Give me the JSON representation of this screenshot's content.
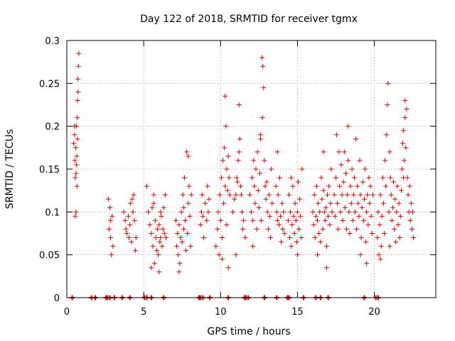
{
  "chart_data": {
    "type": "scatter",
    "title": "Day 122 of 2018, SRMTID for receiver tgmx",
    "xlabel": "GPS time / hours",
    "ylabel": "SRMTID / TECUs",
    "xlim": [
      0,
      24
    ],
    "ylim": [
      0,
      0.3
    ],
    "grid": true,
    "marker": "plus",
    "color": "#dd0000",
    "xticks": [
      {
        "value": 0,
        "label": "0"
      },
      {
        "value": 5,
        "label": "5"
      },
      {
        "value": 10,
        "label": "10"
      },
      {
        "value": 15,
        "label": "15"
      },
      {
        "value": 20,
        "label": "20"
      }
    ],
    "yticks": [
      {
        "value": 0,
        "label": "0"
      },
      {
        "value": 0.05,
        "label": "0.05"
      },
      {
        "value": 0.1,
        "label": "0.1"
      },
      {
        "value": 0.15,
        "label": "0.15"
      },
      {
        "value": 0.2,
        "label": "0.2"
      },
      {
        "value": 0.25,
        "label": "0.25"
      },
      {
        "value": 0.3,
        "label": "0.3"
      }
    ],
    "points": [
      [
        0.45,
        0.18
      ],
      [
        0.5,
        0.19
      ],
      [
        0.52,
        0.16
      ],
      [
        0.55,
        0.14
      ],
      [
        0.58,
        0.175
      ],
      [
        0.6,
        0.145
      ],
      [
        0.62,
        0.2
      ],
      [
        0.65,
        0.165
      ],
      [
        0.68,
        0.21
      ],
      [
        0.7,
        0.23
      ],
      [
        0.72,
        0.255
      ],
      [
        0.75,
        0.27
      ],
      [
        0.78,
        0.285
      ],
      [
        0.55,
        0.095
      ],
      [
        0.6,
        0.1
      ],
      [
        0.66,
        0.13
      ],
      [
        0.7,
        0.185
      ],
      [
        0.73,
        0.24
      ],
      [
        0.5,
        0.2
      ],
      [
        0.63,
        0.155
      ],
      [
        2.7,
        0.115
      ],
      [
        2.75,
        0.08
      ],
      [
        2.8,
        0.105
      ],
      [
        2.85,
        0.07
      ],
      [
        2.9,
        0.05
      ],
      [
        2.95,
        0.095
      ],
      [
        3.0,
        0.06
      ],
      [
        2.85,
        0.09
      ],
      [
        3.7,
        0.1
      ],
      [
        3.8,
        0.09
      ],
      [
        3.85,
        0.08
      ],
      [
        3.9,
        0.075
      ],
      [
        4.0,
        0.095
      ],
      [
        4.1,
        0.085
      ],
      [
        4.15,
        0.11
      ],
      [
        4.2,
        0.065
      ],
      [
        4.3,
        0.1
      ],
      [
        4.35,
        0.12
      ],
      [
        4.4,
        0.09
      ],
      [
        4.45,
        0.055
      ],
      [
        4.5,
        0.07
      ],
      [
        4.25,
        0.115
      ],
      [
        4.05,
        0.07
      ],
      [
        5.2,
        0.13
      ],
      [
        5.3,
        0.1
      ],
      [
        5.4,
        0.085
      ],
      [
        5.5,
        0.075
      ],
      [
        5.55,
        0.105
      ],
      [
        5.6,
        0.06
      ],
      [
        5.65,
        0.11
      ],
      [
        5.7,
        0.04
      ],
      [
        5.75,
        0.09
      ],
      [
        5.8,
        0.07
      ],
      [
        5.85,
        0.055
      ],
      [
        5.9,
        0.08
      ],
      [
        5.95,
        0.05
      ],
      [
        6.0,
        0.085
      ],
      [
        6.05,
        0.065
      ],
      [
        6.1,
        0.07
      ],
      [
        6.15,
        0.095
      ],
      [
        6.2,
        0.06
      ],
      [
        6.25,
        0.08
      ],
      [
        6.3,
        0.105
      ],
      [
        6.35,
        0.075
      ],
      [
        6.4,
        0.12
      ],
      [
        5.5,
        0.035
      ],
      [
        6.0,
        0.03
      ],
      [
        6.45,
        0.07
      ],
      [
        5.65,
        0.12
      ],
      [
        6.1,
        0.1
      ],
      [
        7.1,
        0.09
      ],
      [
        7.15,
        0.06
      ],
      [
        7.2,
        0.075
      ],
      [
        7.25,
        0.05
      ],
      [
        7.3,
        0.085
      ],
      [
        7.35,
        0.04
      ],
      [
        7.4,
        0.07
      ],
      [
        7.45,
        0.1
      ],
      [
        7.5,
        0.065
      ],
      [
        7.55,
        0.12
      ],
      [
        7.6,
        0.08
      ],
      [
        7.65,
        0.14
      ],
      [
        7.7,
        0.09
      ],
      [
        7.75,
        0.055
      ],
      [
        7.8,
        0.17
      ],
      [
        7.85,
        0.075
      ],
      [
        7.9,
        0.11
      ],
      [
        7.95,
        0.13
      ],
      [
        8.0,
        0.095
      ],
      [
        8.05,
        0.06
      ],
      [
        7.6,
        0.105
      ],
      [
        7.3,
        0.03
      ],
      [
        7.9,
        0.165
      ],
      [
        8.1,
        0.12
      ],
      [
        8.7,
        0.085
      ],
      [
        8.75,
        0.1
      ],
      [
        8.8,
        0.12
      ],
      [
        8.85,
        0.095
      ],
      [
        8.9,
        0.07
      ],
      [
        9.0,
        0.11
      ],
      [
        9.1,
        0.09
      ],
      [
        9.15,
        0.13
      ],
      [
        9.2,
        0.1
      ],
      [
        9.25,
        0.115
      ],
      [
        9.7,
        0.06
      ],
      [
        9.8,
        0.08
      ],
      [
        9.85,
        0.1
      ],
      [
        9.9,
        0.05
      ],
      [
        9.95,
        0.12
      ],
      [
        10.0,
        0.09
      ],
      [
        10.05,
        0.14
      ],
      [
        10.1,
        0.07
      ],
      [
        10.15,
        0.16
      ],
      [
        10.2,
        0.11
      ],
      [
        10.25,
        0.175
      ],
      [
        10.3,
        0.13
      ],
      [
        10.35,
        0.2
      ],
      [
        10.4,
        0.15
      ],
      [
        10.45,
        0.125
      ],
      [
        10.5,
        0.165
      ],
      [
        10.3,
        0.235
      ],
      [
        10.55,
        0.14
      ],
      [
        10.6,
        0.12
      ],
      [
        10.5,
        0.035
      ],
      [
        10.1,
        0.045
      ],
      [
        10.4,
        0.085
      ],
      [
        10.8,
        0.1
      ],
      [
        10.9,
        0.115
      ],
      [
        11.0,
        0.12
      ],
      [
        11.05,
        0.14
      ],
      [
        11.1,
        0.135
      ],
      [
        11.15,
        0.16
      ],
      [
        11.2,
        0.17
      ],
      [
        11.25,
        0.185
      ],
      [
        11.3,
        0.13
      ],
      [
        11.35,
        0.12
      ],
      [
        11.4,
        0.1
      ],
      [
        11.2,
        0.225
      ],
      [
        11.0,
        0.05
      ],
      [
        11.45,
        0.08
      ],
      [
        11.5,
        0.09
      ],
      [
        11.6,
        0.07
      ],
      [
        11.9,
        0.12
      ],
      [
        12.0,
        0.1
      ],
      [
        12.05,
        0.14
      ],
      [
        12.1,
        0.09
      ],
      [
        12.15,
        0.16
      ],
      [
        12.2,
        0.13
      ],
      [
        12.25,
        0.11
      ],
      [
        12.3,
        0.15
      ],
      [
        12.35,
        0.08
      ],
      [
        12.4,
        0.17
      ],
      [
        12.45,
        0.125
      ],
      [
        12.5,
        0.105
      ],
      [
        12.55,
        0.145
      ],
      [
        12.6,
        0.19
      ],
      [
        12.65,
        0.09
      ],
      [
        12.7,
        0.28
      ],
      [
        12.75,
        0.27
      ],
      [
        12.8,
        0.245
      ],
      [
        12.72,
        0.21
      ],
      [
        12.85,
        0.16
      ],
      [
        12.9,
        0.13
      ],
      [
        12.95,
        0.115
      ],
      [
        13.0,
        0.135
      ],
      [
        13.05,
        0.1
      ],
      [
        13.1,
        0.08
      ],
      [
        13.15,
        0.12
      ],
      [
        13.2,
        0.095
      ],
      [
        13.25,
        0.07
      ],
      [
        13.3,
        0.15
      ],
      [
        12.1,
        0.06
      ],
      [
        12.6,
        0.185
      ],
      [
        13.35,
        0.11
      ],
      [
        13.6,
        0.13
      ],
      [
        13.65,
        0.1
      ],
      [
        13.7,
        0.09
      ],
      [
        13.75,
        0.12
      ],
      [
        13.8,
        0.085
      ],
      [
        13.85,
        0.14
      ],
      [
        13.9,
        0.095
      ],
      [
        13.95,
        0.065
      ],
      [
        14.0,
        0.11
      ],
      [
        14.05,
        0.08
      ],
      [
        14.1,
        0.1
      ],
      [
        13.7,
        0.17
      ],
      [
        14.15,
        0.075
      ],
      [
        14.4,
        0.09
      ],
      [
        14.45,
        0.12
      ],
      [
        14.5,
        0.07
      ],
      [
        14.55,
        0.1
      ],
      [
        14.6,
        0.06
      ],
      [
        14.65,
        0.085
      ],
      [
        14.7,
        0.13
      ],
      [
        14.75,
        0.095
      ],
      [
        14.8,
        0.075
      ],
      [
        14.85,
        0.11
      ],
      [
        14.9,
        0.09
      ],
      [
        14.95,
        0.065
      ],
      [
        15.0,
        0.1
      ],
      [
        15.05,
        0.135
      ],
      [
        15.1,
        0.08
      ],
      [
        15.15,
        0.115
      ],
      [
        15.2,
        0.095
      ],
      [
        15.25,
        0.07
      ],
      [
        15.3,
        0.15
      ],
      [
        14.6,
        0.14
      ],
      [
        15.0,
        0.05
      ],
      [
        16.0,
        0.1
      ],
      [
        16.05,
        0.085
      ],
      [
        16.1,
        0.12
      ],
      [
        16.15,
        0.07
      ],
      [
        16.2,
        0.095
      ],
      [
        16.25,
        0.13
      ],
      [
        16.3,
        0.09
      ],
      [
        16.35,
        0.11
      ],
      [
        16.4,
        0.075
      ],
      [
        16.45,
        0.1
      ],
      [
        16.5,
        0.065
      ],
      [
        16.55,
        0.14
      ],
      [
        16.6,
        0.115
      ],
      [
        16.65,
        0.08
      ],
      [
        16.7,
        0.125
      ],
      [
        16.75,
        0.1
      ],
      [
        16.8,
        0.09
      ],
      [
        16.85,
        0.105
      ],
      [
        16.9,
        0.06
      ],
      [
        16.95,
        0.12
      ],
      [
        17.0,
        0.095
      ],
      [
        17.05,
        0.13
      ],
      [
        17.1,
        0.085
      ],
      [
        17.15,
        0.11
      ],
      [
        17.2,
        0.15
      ],
      [
        16.3,
        0.05
      ],
      [
        16.9,
        0.035
      ],
      [
        16.7,
        0.17
      ],
      [
        17.25,
        0.1
      ],
      [
        17.4,
        0.12
      ],
      [
        17.45,
        0.095
      ],
      [
        17.5,
        0.14
      ],
      [
        17.55,
        0.19
      ],
      [
        17.6,
        0.11
      ],
      [
        17.65,
        0.08
      ],
      [
        17.7,
        0.17
      ],
      [
        17.75,
        0.13
      ],
      [
        17.8,
        0.1
      ],
      [
        17.85,
        0.155
      ],
      [
        17.9,
        0.12
      ],
      [
        17.95,
        0.09
      ],
      [
        18.0,
        0.135
      ],
      [
        18.05,
        0.17
      ],
      [
        18.1,
        0.105
      ],
      [
        18.15,
        0.145
      ],
      [
        18.2,
        0.08
      ],
      [
        18.25,
        0.12
      ],
      [
        18.3,
        0.16
      ],
      [
        18.35,
        0.1
      ],
      [
        18.4,
        0.075
      ],
      [
        18.45,
        0.13
      ],
      [
        18.5,
        0.11
      ],
      [
        18.55,
        0.15
      ],
      [
        18.6,
        0.09
      ],
      [
        18.65,
        0.12
      ],
      [
        18.7,
        0.14
      ],
      [
        18.75,
        0.1
      ],
      [
        18.8,
        0.185
      ],
      [
        18.85,
        0.08
      ],
      [
        18.9,
        0.13
      ],
      [
        18.95,
        0.11
      ],
      [
        19.0,
        0.095
      ],
      [
        19.05,
        0.16
      ],
      [
        19.1,
        0.12
      ],
      [
        19.15,
        0.07
      ],
      [
        19.2,
        0.105
      ],
      [
        19.25,
        0.135
      ],
      [
        19.3,
        0.09
      ],
      [
        19.35,
        0.115
      ],
      [
        19.4,
        0.15
      ],
      [
        19.45,
        0.065
      ],
      [
        19.5,
        0.1
      ],
      [
        19.55,
        0.12
      ],
      [
        19.6,
        0.085
      ],
      [
        19.65,
        0.14
      ],
      [
        19.7,
        0.11
      ],
      [
        19.75,
        0.13
      ],
      [
        19.8,
        0.095
      ],
      [
        19.85,
        0.075
      ],
      [
        19.9,
        0.12
      ],
      [
        19.5,
        0.04
      ],
      [
        19.1,
        0.05
      ],
      [
        18.3,
        0.2
      ],
      [
        20.2,
        0.07
      ],
      [
        20.25,
        0.1
      ],
      [
        20.3,
        0.05
      ],
      [
        20.35,
        0.085
      ],
      [
        20.4,
        0.12
      ],
      [
        20.45,
        0.06
      ],
      [
        20.5,
        0.095
      ],
      [
        20.55,
        0.14
      ],
      [
        20.6,
        0.11
      ],
      [
        20.65,
        0.075
      ],
      [
        20.7,
        0.16
      ],
      [
        20.75,
        0.13
      ],
      [
        20.8,
        0.19
      ],
      [
        20.85,
        0.225
      ],
      [
        20.9,
        0.25
      ],
      [
        20.95,
        0.1
      ],
      [
        21.0,
        0.17
      ],
      [
        21.05,
        0.14
      ],
      [
        21.1,
        0.12
      ],
      [
        21.15,
        0.09
      ],
      [
        21.2,
        0.105
      ],
      [
        21.25,
        0.135
      ],
      [
        21.3,
        0.08
      ],
      [
        21.35,
        0.115
      ],
      [
        21.4,
        0.065
      ],
      [
        21.45,
        0.1
      ],
      [
        21.5,
        0.13
      ],
      [
        21.55,
        0.085
      ],
      [
        21.6,
        0.11
      ],
      [
        21.65,
        0.07
      ],
      [
        21.7,
        0.095
      ],
      [
        21.75,
        0.125
      ],
      [
        21.8,
        0.15
      ],
      [
        21.85,
        0.18
      ],
      [
        21.9,
        0.195
      ],
      [
        21.95,
        0.16
      ],
      [
        22.0,
        0.21
      ],
      [
        22.05,
        0.175
      ],
      [
        22.1,
        0.22
      ],
      [
        22.15,
        0.14
      ],
      [
        22.2,
        0.12
      ],
      [
        22.25,
        0.1
      ],
      [
        22.3,
        0.13
      ],
      [
        22.35,
        0.09
      ],
      [
        22.4,
        0.11
      ],
      [
        22.45,
        0.08
      ],
      [
        22.5,
        0.1
      ],
      [
        22.55,
        0.07
      ],
      [
        20.4,
        0.045
      ],
      [
        21.0,
        0.06
      ],
      [
        21.9,
        0.14
      ],
      [
        22.0,
        0.23
      ]
    ],
    "bottom_points": [
      0.35,
      1.6,
      1.85,
      2.55,
      2.65,
      2.8,
      3.1,
      3.6,
      4.1,
      5.05,
      5.2,
      5.5,
      6.3,
      8.6,
      8.7,
      8.85,
      9.3,
      10.5,
      11.55,
      11.65,
      11.8,
      12.85,
      13.65,
      14.35,
      14.45,
      15.4,
      16.2,
      16.5,
      17.0,
      19.35,
      20.1,
      20.25
    ]
  }
}
